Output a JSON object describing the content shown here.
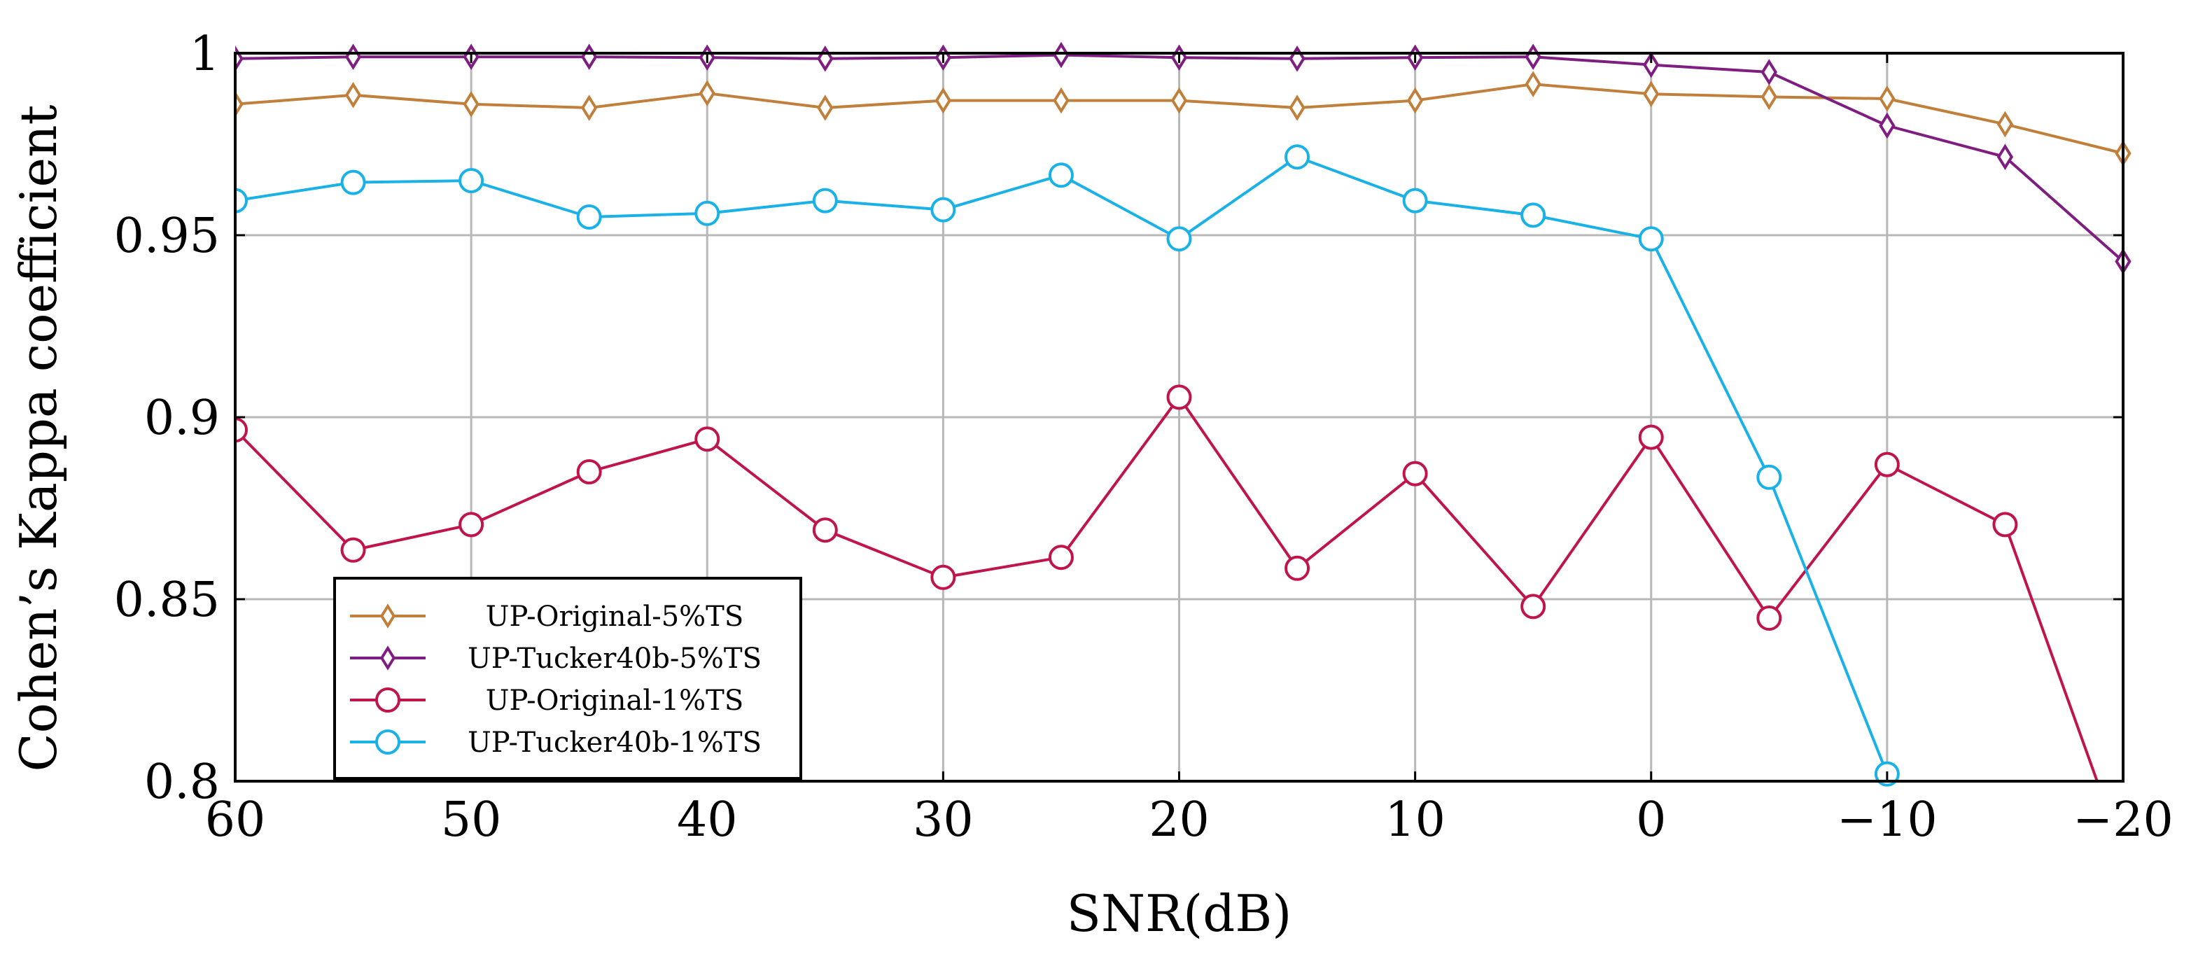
{
  "chart_data": {
    "type": "line",
    "title": "",
    "xlabel": "SNR(dB)",
    "ylabel": "Cohen’s Kappa coefficient",
    "xlim": [
      60,
      -20
    ],
    "ylim": [
      0.8,
      1
    ],
    "grid": true,
    "legend_position": "bottom-left",
    "xticks": [
      60,
      50,
      40,
      30,
      20,
      10,
      0,
      -10,
      -20
    ],
    "xtick_labels": [
      "60",
      "50",
      "40",
      "30",
      "20",
      "10",
      "0",
      "−10",
      "−20"
    ],
    "yticks": [
      0.8,
      0.85,
      0.9,
      0.95,
      1
    ],
    "ytick_labels": [
      "0.8",
      "0.85",
      "0.9",
      "0.95",
      "1"
    ],
    "x": [
      60,
      55,
      50,
      45,
      40,
      35,
      30,
      25,
      20,
      15,
      10,
      5,
      0,
      -5,
      -10,
      -15,
      -20
    ],
    "series": [
      {
        "name": "UP-Original-5%TS",
        "color": "#c0803c",
        "marker": "diamond",
        "x": [
          60,
          55,
          50,
          45,
          40,
          35,
          30,
          25,
          20,
          15,
          10,
          5,
          0,
          -5,
          -10,
          -15,
          -20
        ],
        "values": [
          0.986,
          0.9885,
          0.986,
          0.985,
          0.989,
          0.985,
          0.987,
          0.987,
          0.987,
          0.985,
          0.987,
          0.9915,
          0.9888,
          0.988,
          0.9875,
          0.9805,
          0.9725
        ]
      },
      {
        "name": "UP-Tucker40b-5%TS",
        "color": "#7e1e80",
        "marker": "diamond",
        "x": [
          60,
          55,
          50,
          45,
          40,
          35,
          30,
          25,
          20,
          15,
          10,
          5,
          0,
          -5,
          -10,
          -15,
          -20
        ],
        "values": [
          0.9985,
          0.999,
          0.999,
          0.999,
          0.9988,
          0.9985,
          0.9988,
          0.9995,
          0.9988,
          0.9985,
          0.9988,
          0.999,
          0.9968,
          0.9948,
          0.9801,
          0.9715,
          0.9428
        ]
      },
      {
        "name": "UP-Original-1%TS",
        "color": "#c0154a",
        "marker": "circle",
        "x": [
          60,
          55,
          50,
          45,
          40,
          35,
          30,
          25,
          20,
          15,
          10,
          5,
          0,
          -5,
          -10,
          -15,
          -18.9
        ],
        "values": [
          0.8965,
          0.8635,
          0.8705,
          0.885,
          0.894,
          0.869,
          0.856,
          0.8615,
          0.9055,
          0.8585,
          0.8845,
          0.848,
          0.8945,
          0.8448,
          0.887,
          0.8705,
          0.8
        ]
      },
      {
        "name": "UP-Tucker40b-1%TS",
        "color": "#1ab2e6",
        "marker": "circle",
        "x": [
          60,
          55,
          50,
          45,
          40,
          35,
          30,
          25,
          20,
          15,
          10,
          5,
          0,
          -5,
          -10
        ],
        "values": [
          0.9595,
          0.9645,
          0.965,
          0.955,
          0.956,
          0.9595,
          0.957,
          0.9665,
          0.949,
          0.9715,
          0.9595,
          0.9555,
          0.949,
          0.8835,
          0.802
        ]
      }
    ]
  }
}
